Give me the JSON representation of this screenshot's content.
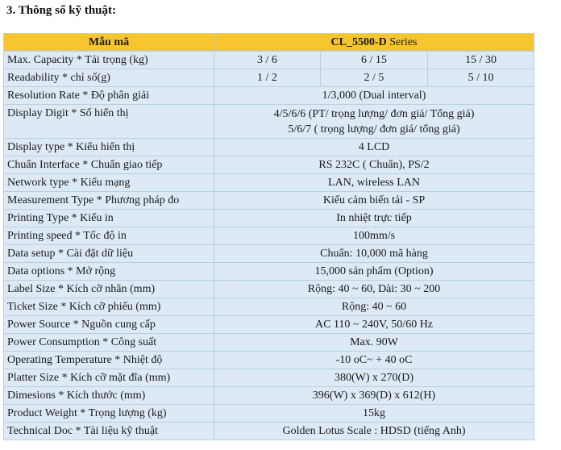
{
  "heading": "3. Thông số kỹ thuật:",
  "header": {
    "col1": "Mẫu mã",
    "col2_model": "CL_5500-D",
    "col2_suffix": " Series"
  },
  "capacity": {
    "label": "Max. Capacity * Tải trọng (kg)",
    "values": [
      "3 / 6",
      "6 / 15",
      "15 / 30"
    ]
  },
  "readability": {
    "label": "Readability * chỉ số(g)",
    "values": [
      "1 / 2",
      "2 / 5",
      "5 / 10"
    ]
  },
  "resolution": {
    "label": "Resolution Rate * Độ phân giải",
    "value": "1/3,000 (Dual interval)"
  },
  "display_digit": {
    "label": "Display Digit * Số hiển thị",
    "line1": "4/5/6/6 (PT/ trọng lượng/ đơn giá/ Tổng giá)",
    "line2": "5/6/7 ( trọng lượng/ đơn giá/ tổng giá)"
  },
  "rows": [
    {
      "label": "Display type * Kiểu hiển thị",
      "value": "4 LCD"
    },
    {
      "label": "Chuẩn Interface * Chuẩn giao tiếp",
      "value": "RS 232C ( Chuẩn), PS/2"
    },
    {
      "label": "Network type * Kiểu mạng",
      "value": "LAN, wireless LAN"
    },
    {
      "label": "Measurement Type * Phương pháp đo",
      "value": "Kiểu cảm biến tải - SP"
    },
    {
      "label": "Printing Type * Kiểu in",
      "value": "In nhiệt trực tiếp"
    },
    {
      "label": "Printing speed * Tốc độ in",
      "value": "100mm/s"
    },
    {
      "label": "Data setup * Cài đặt dữ liệu",
      "value": "Chuẩn: 10,000 mã hàng"
    },
    {
      "label": "Data options * Mở rộng",
      "value": "15,000 sản phẩm (Option)"
    },
    {
      "label": "Label Size * Kích cỡ nhãn (mm)",
      "value": "Rộng: 40 ~ 60, Dài: 30 ~ 200"
    },
    {
      "label": "Ticket Size * Kích cỡ phiếu (mm)",
      "value": "Rộng: 40 ~ 60"
    },
    {
      "label": "Power Source * Nguồn cung cấp",
      "value": "AC 110 ~ 240V, 50/60 Hz"
    },
    {
      "label": "Power Consumption * Công suất",
      "value": "Max. 90W"
    },
    {
      "label": "Operating Temperature * Nhiệt độ",
      "value": "-10 oC~ + 40 oC"
    },
    {
      "label": "Platter Size * Kích cỡ mặt đĩa (mm)",
      "value": "380(W) x 270(D)"
    },
    {
      "label": "Dimesions * Kích thước (mm)",
      "value": "396(W) x 369(D) x 612(H)"
    },
    {
      "label": "Product Weight * Trọng lượng (kg)",
      "value": "15kg"
    },
    {
      "label": "Technical Doc  *  Tài liệu kỹ thuật",
      "value": "Golden Lotus Scale : HDSD (tiếng Anh)"
    }
  ]
}
